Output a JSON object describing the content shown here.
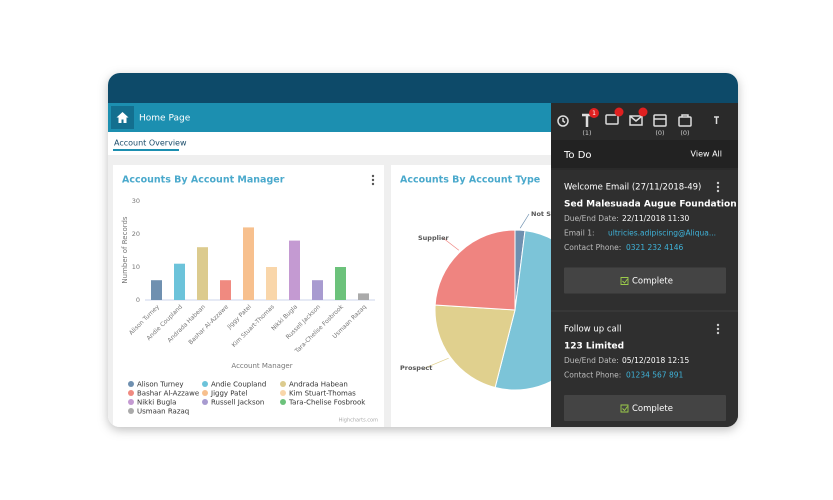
{
  "header": {
    "title": "Home Page",
    "tab": "Account Overview"
  },
  "chart_data": [
    {
      "type": "bar",
      "title": "Accounts By Account Manager",
      "y_label": "Number of Records",
      "x_label": "Account Manager",
      "credit": "Highcharts.com",
      "categories": [
        "Alison Turney",
        "Andie Coupland",
        "Andrada Habean",
        "Bashar Al-Azzawe",
        "Jiggy Patel",
        "Kim Stuart-Thomas",
        "Nikki Bugla",
        "Russell Jackson",
        "Tara-Chelise Fosbrook",
        "Usmaan Razaq"
      ],
      "values": [
        6,
        11,
        16,
        6,
        22,
        10,
        18,
        6,
        10,
        2
      ],
      "colors": [
        "#6f90b0",
        "#6cc3da",
        "#dccb8e",
        "#f08a80",
        "#f7c08e",
        "#f9d6aa",
        "#c49ad2",
        "#a89bd0",
        "#6cc27b",
        "#aaaaaa"
      ],
      "ylim": [
        0,
        30
      ],
      "yticks": [
        0,
        10,
        20,
        30
      ],
      "grid": false
    },
    {
      "type": "pie",
      "title": "Accounts By Account Type",
      "categories": [
        "Not Se",
        null,
        "Prospect",
        "Supplier"
      ],
      "values": [
        2,
        52,
        22,
        24
      ],
      "colors": [
        "#6f90b0",
        "#7cc4d8",
        "#e0d08e",
        "#ef8480"
      ]
    }
  ],
  "panel": {
    "badge": "1",
    "counts": [
      "(1)",
      "(0)",
      "(0)"
    ],
    "title": "To Do",
    "view_all": "View All",
    "tasks": [
      {
        "title": "Welcome Email (27/11/2018-49)",
        "company": "Sed Malesuada Augue Foundation",
        "fields": [
          [
            "Due/End Date:",
            "22/11/2018 11:30"
          ],
          [
            "Email 1:",
            "ultricies.adipiscing@Aliqua..."
          ],
          [
            "Contact Phone:",
            "0321 232 4146"
          ]
        ],
        "button": "Complete"
      },
      {
        "title": "Follow up call",
        "company": "123 Limited",
        "fields": [
          [
            "Due/End Date:",
            "05/12/2018 12:15"
          ],
          [
            "Contact Phone:",
            "01234 567 891"
          ]
        ],
        "button": "Complete"
      }
    ]
  }
}
